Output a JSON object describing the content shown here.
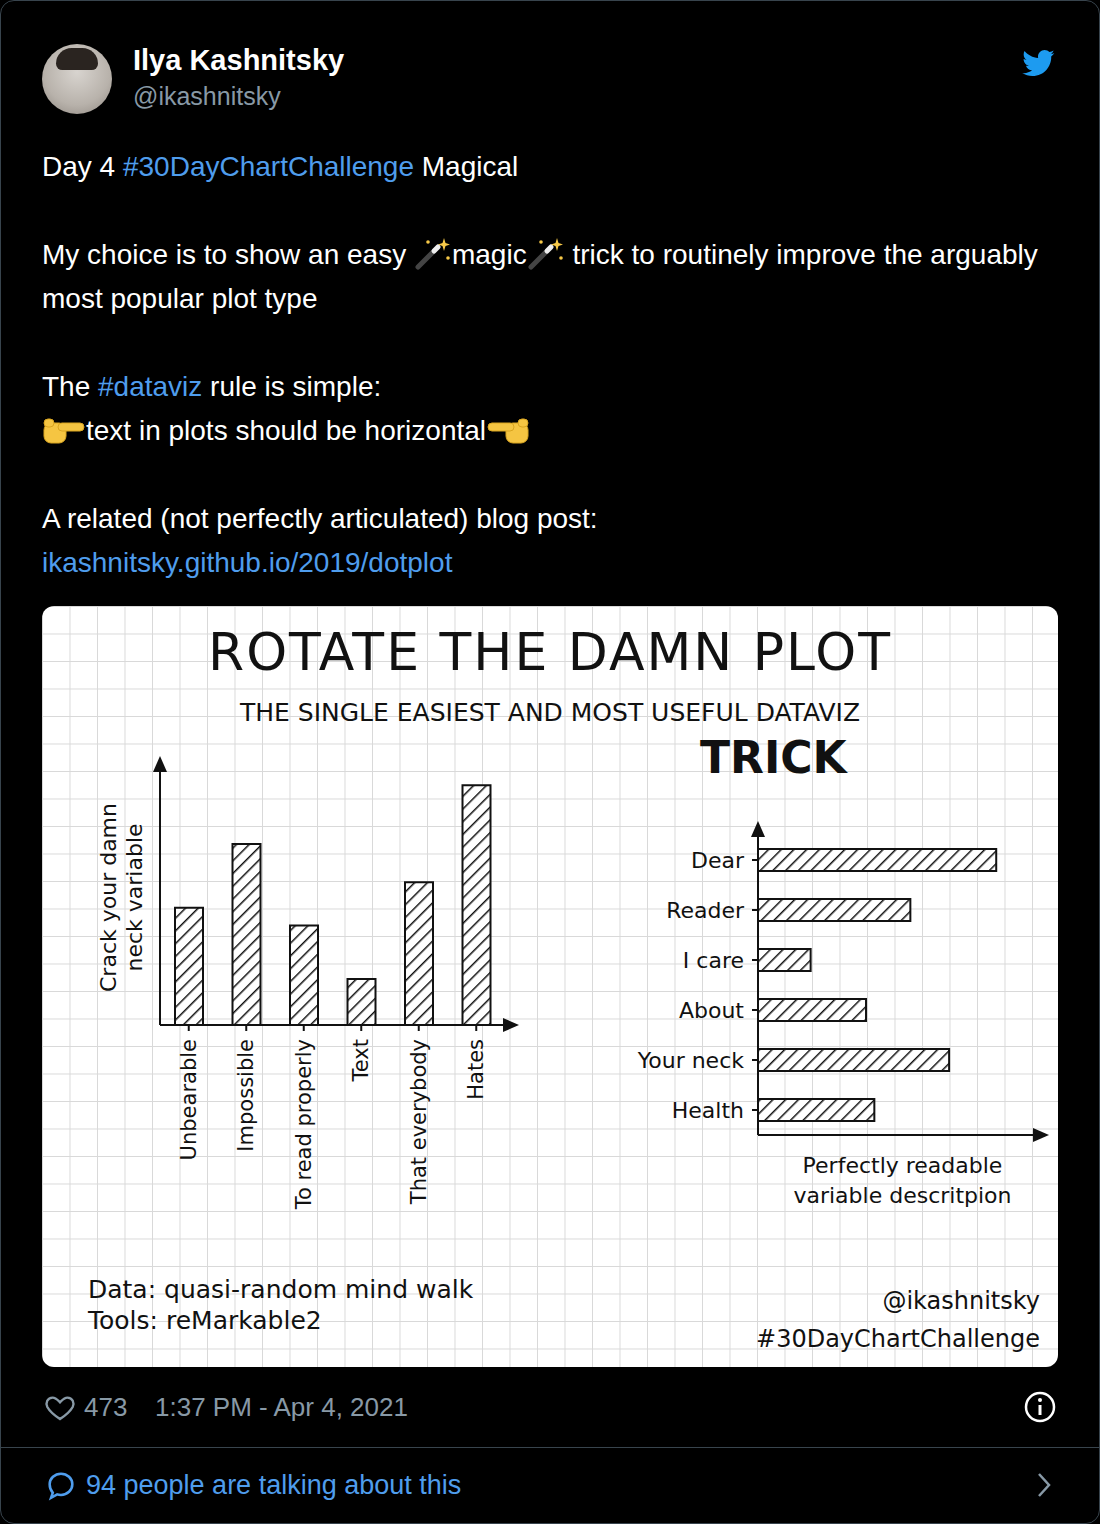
{
  "tweet": {
    "author": {
      "name": "Ilya Kashnitsky",
      "handle": "@ikashnitsky"
    },
    "intro": {
      "day": "Day 4",
      "hashtag": "#30DayChartChallenge",
      "theme": "Magical"
    },
    "choice": {
      "before": "My choice is to show an easy",
      "word": "magic",
      "after": "trick to routinely improve the arguably most popular plot type"
    },
    "rule": {
      "before": "The",
      "hashtag": "#dataviz",
      "after": "rule is simple:",
      "statement": "text in plots should be horizontal"
    },
    "blog": {
      "text": "A related (not perfectly articulated) blog post:",
      "link": "ikashnitsky.github.io/2019/dotplot"
    },
    "footer": {
      "likes": 473,
      "time": "1:37 PM - Apr 4, 2021",
      "conversation": "94 people are talking about this"
    }
  },
  "image": {
    "title": "ROTATE THE DAMN PLOT",
    "subtitle": "THE SINGLE EASIEST AND MOST USEFUL DATAVIZ",
    "subtitle_2": "TRICK",
    "data_note": "Data: quasi-random mind walk",
    "tools_note": "Tools: reMarkable2",
    "signature": "@ikashnitsky",
    "hashtag": "#30DayChartChallenge"
  },
  "chart_data": [
    {
      "type": "bar",
      "categories": [
        "Unbearable",
        "Impossible",
        "To read properly",
        "Text",
        "That everybody",
        "Hates"
      ],
      "values": [
        4.6,
        7.1,
        3.9,
        1.8,
        5.6,
        9.4
      ],
      "ylim": [
        0,
        10
      ],
      "y_label": "Crack your damn neck variable",
      "color": "#111111",
      "tick_labels": "x"
    },
    {
      "type": "bar",
      "orientation": "horizontal",
      "categories": [
        "Dear",
        "Reader",
        "I care",
        "About",
        "Your neck",
        "Health"
      ],
      "values": [
        8.6,
        5.5,
        1.9,
        3.9,
        6.9,
        4.2
      ],
      "xlim": [
        0,
        10
      ],
      "x_label": "Perfectly readable variable descritpion",
      "color": "#111111",
      "tick_labels": "y"
    }
  ]
}
